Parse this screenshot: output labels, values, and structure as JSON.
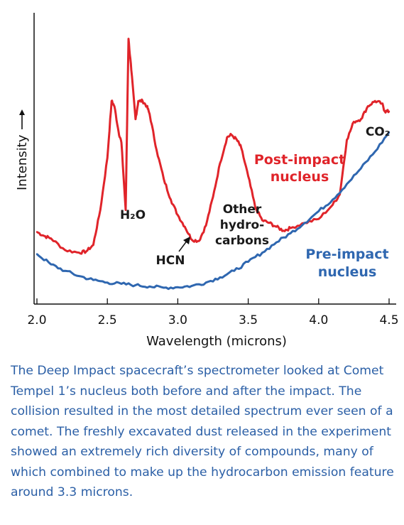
{
  "chart_data": {
    "type": "line",
    "xlabel": "Wavelength (microns)",
    "ylabel": "Intensity",
    "xlim": [
      2.0,
      4.5
    ],
    "ylim": [
      0,
      100
    ],
    "xticks": [
      "2.0",
      "2.5",
      "3.0",
      "3.5",
      "4.0",
      "4.5"
    ],
    "series": [
      {
        "name": "Post-impact nucleus",
        "color": "#e0242a",
        "x": [
          2.0,
          2.05,
          2.1,
          2.2,
          2.3,
          2.35,
          2.4,
          2.45,
          2.5,
          2.53,
          2.55,
          2.58,
          2.6,
          2.63,
          2.65,
          2.67,
          2.7,
          2.72,
          2.75,
          2.78,
          2.8,
          2.85,
          2.9,
          2.95,
          3.0,
          3.05,
          3.1,
          3.15,
          3.2,
          3.25,
          3.3,
          3.35,
          3.38,
          3.42,
          3.45,
          3.5,
          3.55,
          3.6,
          3.65,
          3.7,
          3.75,
          3.8,
          3.9,
          4.0,
          4.1,
          4.15,
          4.2,
          4.25,
          4.3,
          4.35,
          4.4,
          4.45,
          4.47,
          4.5
        ],
        "y": [
          21.5,
          20,
          19,
          14.5,
          13.5,
          14,
          16.5,
          30,
          50,
          72,
          70,
          60,
          56,
          30,
          96,
          84,
          65,
          72,
          72,
          70,
          67,
          53,
          42,
          34,
          28,
          23.5,
          18.5,
          18,
          24,
          35,
          48,
          58,
          59,
          57,
          54,
          43,
          31,
          26,
          25,
          23.5,
          22,
          23,
          25,
          26.5,
          32,
          36,
          57,
          64,
          65,
          70,
          72,
          71,
          68,
          68
        ]
      },
      {
        "name": "Pre-impact nucleus",
        "color": "#2f67b0",
        "x": [
          2.0,
          2.1,
          2.2,
          2.3,
          2.4,
          2.5,
          2.6,
          2.7,
          2.8,
          2.9,
          3.0,
          3.1,
          3.2,
          3.3,
          3.4,
          3.5,
          3.6,
          3.7,
          3.8,
          3.9,
          4.0,
          4.1,
          4.2,
          4.3,
          4.4,
          4.5
        ],
        "y": [
          13,
          9,
          6.5,
          4.5,
          3,
          2,
          1.5,
          1,
          0.5,
          0,
          0.2,
          0.7,
          2,
          4,
          6.5,
          10,
          13.5,
          17.5,
          21,
          25,
          29.5,
          34,
          40,
          46,
          52.5,
          60
        ]
      }
    ],
    "annotations": [
      {
        "text": "H₂O"
      },
      {
        "text": "HCN"
      },
      {
        "text": "Other"
      },
      {
        "text": "hydro-"
      },
      {
        "text": "carbons"
      },
      {
        "text": "CO₂"
      }
    ],
    "legend_labels": {
      "post_line1": "Post-impact",
      "post_line2": "nucleus",
      "pre_line1": "Pre-impact",
      "pre_line2": "nucleus"
    },
    "grid": false
  },
  "caption": "The Deep Impact spacecraft’s spectrometer looked at Comet Tempel 1’s nucleus both before and after the impact. The collision resulted in the most detailed spectrum ever seen of a comet. The freshly excavated dust released in the experiment showed an extremely rich diversity of compounds, many of which combined to make up the hydrocarbon emission feature around 3.3 microns."
}
